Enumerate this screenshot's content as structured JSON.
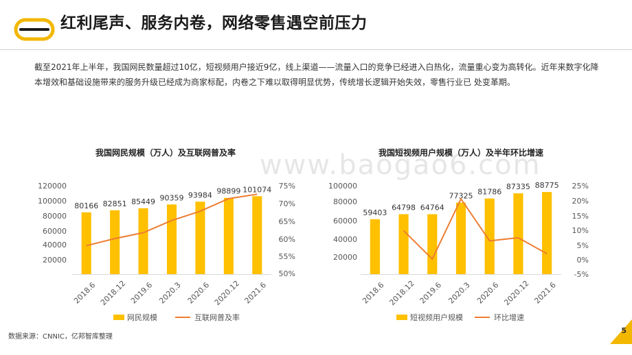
{
  "slide": {
    "title": "红利尾声、服务内卷，网络零售遇空前压力",
    "body": "截至2021年上半年，我国网民数量超过10亿，短视频用户接近9亿，线上渠道——流量入口的竞争已经进入白热化，流量重心变为高转化。近年来数字化降本增效和基础设施带来的服务升级已经成为商家标配，内卷之下难以取得明显优势，传统增长逻辑开始失效，零售行业已 处变革期。",
    "source": "数据来源：CNNIC，亿邦智库整理",
    "page_number": "5",
    "watermark": "www.baogao6.com"
  },
  "colors": {
    "bar": "#FFC000",
    "line": "#ED7D31",
    "accent": "#E8B100"
  },
  "chart_data": [
    {
      "type": "bar",
      "title": "我国网民规模（万人）及互联网普及率",
      "categories": [
        "2018.6",
        "2018.12",
        "2019.6",
        "2020.3",
        "2020.6",
        "2020.12",
        "2021.6"
      ],
      "series": [
        {
          "name": "网民规模",
          "type": "bar",
          "values": [
            80166,
            82851,
            85449,
            90359,
            93984,
            98899,
            101074
          ]
        },
        {
          "name": "互联网普及率",
          "type": "line",
          "axis": "right",
          "values": [
            57.7,
            59.6,
            61.2,
            64.5,
            67.0,
            70.4,
            71.6
          ]
        }
      ],
      "y_ticks_left": [
        "120000",
        "100000",
        "80000",
        "60000",
        "40000",
        "20000"
      ],
      "y_ticks_right": [
        "75%",
        "70%",
        "65%",
        "60%",
        "55%",
        "50%"
      ],
      "ylim": [
        0,
        120000
      ],
      "y2lim": [
        50,
        75
      ]
    },
    {
      "type": "bar",
      "title": "我国短视频用户规模（万人）及半年环比增速",
      "categories": [
        "2018.6",
        "2018.12",
        "2019.6",
        "2020.3",
        "2020.6",
        "2020.12",
        "2021.6"
      ],
      "series": [
        {
          "name": "短视频用户规模",
          "type": "bar",
          "values": [
            59403,
            64798,
            64764,
            77325,
            81786,
            87335,
            88775
          ]
        },
        {
          "name": "环比增速",
          "type": "line",
          "axis": "right",
          "values": [
            null,
            9.1,
            -0.1,
            19.4,
            5.8,
            6.8,
            1.6
          ]
        }
      ],
      "y_ticks_left": [
        "100000",
        "80000",
        "60000",
        "40000",
        "20000"
      ],
      "y_ticks_right": [
        "25%",
        "20%",
        "15%",
        "10%",
        "5%",
        "0%",
        "-5%"
      ],
      "ylim": [
        0,
        100000
      ],
      "y2lim": [
        -5,
        25
      ]
    }
  ]
}
